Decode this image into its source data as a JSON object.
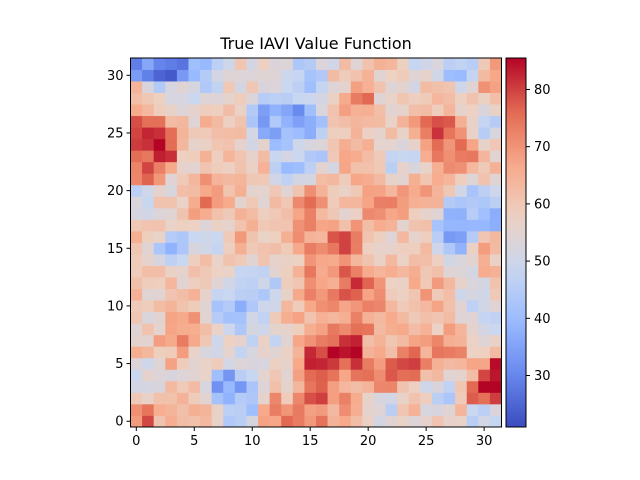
{
  "chart_data": {
    "type": "heatmap",
    "title": "True IAVI Value Function",
    "xlabel": "",
    "ylabel": "",
    "grid_size": 32,
    "origin": "lower",
    "xlim": [
      -0.5,
      31.5
    ],
    "ylim": [
      -0.5,
      31.5
    ],
    "x_ticks": [
      0,
      5,
      10,
      15,
      20,
      25,
      30
    ],
    "y_ticks": [
      0,
      5,
      10,
      15,
      20,
      25,
      30
    ],
    "colormap": "coolwarm",
    "colormap_stops": [
      "#3b4cc0",
      "#6788ee",
      "#9abbff",
      "#c9d7f0",
      "#edd1c2",
      "#f7a889",
      "#e26952",
      "#b40426"
    ],
    "vmin": 21,
    "vmax": 85.5,
    "colorbar_ticks": [
      30,
      40,
      50,
      60,
      70,
      80
    ],
    "values_note": "approximate per-cell values read from image",
    "anchors": [
      {
        "x": 3,
        "y": 31,
        "v": 25
      },
      {
        "x": 1,
        "y": 31,
        "v": 30
      },
      {
        "x": 6,
        "y": 30,
        "v": 45
      },
      {
        "x": 9,
        "y": 31,
        "v": 55
      },
      {
        "x": 13,
        "y": 30,
        "v": 50
      },
      {
        "x": 15,
        "y": 30,
        "v": 45
      },
      {
        "x": 18,
        "y": 30,
        "v": 58
      },
      {
        "x": 22,
        "y": 30,
        "v": 60
      },
      {
        "x": 24,
        "y": 30,
        "v": 52
      },
      {
        "x": 28,
        "y": 31,
        "v": 42
      },
      {
        "x": 31,
        "y": 30,
        "v": 68
      },
      {
        "x": 0,
        "y": 28,
        "v": 60
      },
      {
        "x": 4,
        "y": 28,
        "v": 52
      },
      {
        "x": 8,
        "y": 28,
        "v": 58
      },
      {
        "x": 12,
        "y": 26,
        "v": 38
      },
      {
        "x": 14,
        "y": 26,
        "v": 35
      },
      {
        "x": 17,
        "y": 28,
        "v": 55
      },
      {
        "x": 19,
        "y": 28,
        "v": 72
      },
      {
        "x": 22,
        "y": 27,
        "v": 58
      },
      {
        "x": 26,
        "y": 28,
        "v": 62
      },
      {
        "x": 30,
        "y": 26,
        "v": 50
      },
      {
        "x": 0,
        "y": 25,
        "v": 82
      },
      {
        "x": 2,
        "y": 24,
        "v": 82
      },
      {
        "x": 1,
        "y": 22,
        "v": 75
      },
      {
        "x": 5,
        "y": 23,
        "v": 60
      },
      {
        "x": 7,
        "y": 25,
        "v": 65
      },
      {
        "x": 10,
        "y": 22,
        "v": 62
      },
      {
        "x": 13,
        "y": 22,
        "v": 45
      },
      {
        "x": 15,
        "y": 23,
        "v": 48
      },
      {
        "x": 19,
        "y": 23,
        "v": 65
      },
      {
        "x": 23,
        "y": 23,
        "v": 50
      },
      {
        "x": 26,
        "y": 25,
        "v": 78
      },
      {
        "x": 28,
        "y": 24,
        "v": 73
      },
      {
        "x": 31,
        "y": 23,
        "v": 60
      },
      {
        "x": 0,
        "y": 19,
        "v": 48
      },
      {
        "x": 3,
        "y": 20,
        "v": 58
      },
      {
        "x": 6,
        "y": 19,
        "v": 72
      },
      {
        "x": 9,
        "y": 18,
        "v": 60
      },
      {
        "x": 12,
        "y": 20,
        "v": 58
      },
      {
        "x": 15,
        "y": 19,
        "v": 70
      },
      {
        "x": 18,
        "y": 18,
        "v": 60
      },
      {
        "x": 21,
        "y": 19,
        "v": 68
      },
      {
        "x": 25,
        "y": 20,
        "v": 65
      },
      {
        "x": 28,
        "y": 18,
        "v": 40
      },
      {
        "x": 31,
        "y": 18,
        "v": 40
      },
      {
        "x": 1,
        "y": 16,
        "v": 60
      },
      {
        "x": 3,
        "y": 15,
        "v": 42
      },
      {
        "x": 6,
        "y": 16,
        "v": 48
      },
      {
        "x": 9,
        "y": 15,
        "v": 65
      },
      {
        "x": 12,
        "y": 16,
        "v": 60
      },
      {
        "x": 15,
        "y": 15,
        "v": 68
      },
      {
        "x": 18,
        "y": 16,
        "v": 75
      },
      {
        "x": 21,
        "y": 15,
        "v": 55
      },
      {
        "x": 24,
        "y": 16,
        "v": 60
      },
      {
        "x": 28,
        "y": 16,
        "v": 35
      },
      {
        "x": 30,
        "y": 15,
        "v": 65
      },
      {
        "x": 0,
        "y": 12,
        "v": 62
      },
      {
        "x": 3,
        "y": 12,
        "v": 58
      },
      {
        "x": 6,
        "y": 13,
        "v": 63
      },
      {
        "x": 10,
        "y": 13,
        "v": 52
      },
      {
        "x": 13,
        "y": 14,
        "v": 62
      },
      {
        "x": 16,
        "y": 12,
        "v": 70
      },
      {
        "x": 19,
        "y": 12,
        "v": 78
      },
      {
        "x": 22,
        "y": 13,
        "v": 62
      },
      {
        "x": 25,
        "y": 12,
        "v": 65
      },
      {
        "x": 29,
        "y": 11,
        "v": 50
      },
      {
        "x": 31,
        "y": 13,
        "v": 63
      },
      {
        "x": 1,
        "y": 9,
        "v": 55
      },
      {
        "x": 4,
        "y": 8,
        "v": 72
      },
      {
        "x": 8,
        "y": 10,
        "v": 42
      },
      {
        "x": 11,
        "y": 11,
        "v": 45
      },
      {
        "x": 14,
        "y": 9,
        "v": 62
      },
      {
        "x": 17,
        "y": 8,
        "v": 68
      },
      {
        "x": 20,
        "y": 10,
        "v": 70
      },
      {
        "x": 24,
        "y": 9,
        "v": 60
      },
      {
        "x": 27,
        "y": 10,
        "v": 62
      },
      {
        "x": 30,
        "y": 9,
        "v": 48
      },
      {
        "x": 0,
        "y": 6,
        "v": 60
      },
      {
        "x": 3,
        "y": 6,
        "v": 65
      },
      {
        "x": 7,
        "y": 6,
        "v": 55
      },
      {
        "x": 9,
        "y": 5,
        "v": 48
      },
      {
        "x": 12,
        "y": 6,
        "v": 52
      },
      {
        "x": 16,
        "y": 5,
        "v": 82
      },
      {
        "x": 18,
        "y": 6,
        "v": 82
      },
      {
        "x": 21,
        "y": 6,
        "v": 62
      },
      {
        "x": 23,
        "y": 5,
        "v": 78
      },
      {
        "x": 27,
        "y": 6,
        "v": 70
      },
      {
        "x": 30,
        "y": 6,
        "v": 60
      },
      {
        "x": 1,
        "y": 4,
        "v": 52
      },
      {
        "x": 4,
        "y": 3,
        "v": 58
      },
      {
        "x": 8,
        "y": 3,
        "v": 35
      },
      {
        "x": 10,
        "y": 2,
        "v": 45
      },
      {
        "x": 13,
        "y": 3,
        "v": 60
      },
      {
        "x": 15,
        "y": 3,
        "v": 78
      },
      {
        "x": 18,
        "y": 3,
        "v": 68
      },
      {
        "x": 21,
        "y": 4,
        "v": 72
      },
      {
        "x": 24,
        "y": 2,
        "v": 62
      },
      {
        "x": 26,
        "y": 2,
        "v": 45
      },
      {
        "x": 28,
        "y": 4,
        "v": 55
      },
      {
        "x": 30,
        "y": 3,
        "v": 84
      },
      {
        "x": 31,
        "y": 4,
        "v": 85
      },
      {
        "x": 0,
        "y": 0,
        "v": 75
      },
      {
        "x": 3,
        "y": 1,
        "v": 65
      },
      {
        "x": 6,
        "y": 0,
        "v": 62
      },
      {
        "x": 9,
        "y": 0,
        "v": 45
      },
      {
        "x": 12,
        "y": 1,
        "v": 72
      },
      {
        "x": 15,
        "y": 0,
        "v": 70
      },
      {
        "x": 18,
        "y": 0,
        "v": 65
      },
      {
        "x": 21,
        "y": 1,
        "v": 50
      },
      {
        "x": 24,
        "y": 0,
        "v": 58
      },
      {
        "x": 27,
        "y": 0,
        "v": 62
      },
      {
        "x": 30,
        "y": 0,
        "v": 45
      }
    ]
  }
}
